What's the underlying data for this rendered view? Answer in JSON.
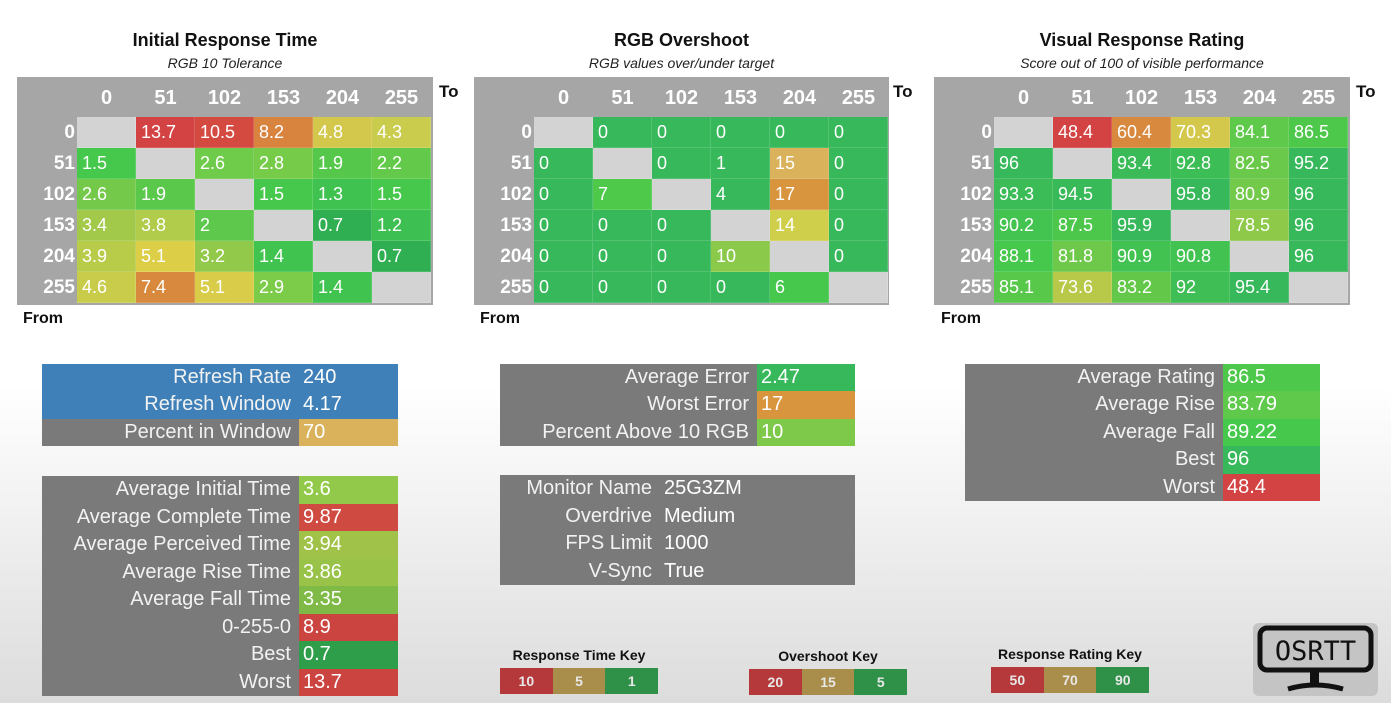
{
  "axis_labels": {
    "to": "To",
    "from": "From"
  },
  "colors": {
    "red": "#d34343",
    "orange": "#d8893e",
    "amber": "#d9b25b",
    "yellow": "#cfcf4c",
    "lime": "#8fc94a",
    "green": "#3cba5a",
    "bright_green": "#46c84c",
    "dark_green": "#2f9e4a",
    "blue": "#3f80b8",
    "gray": "#7a7a7a",
    "diag": "#d3d3d3"
  },
  "heatmaps": [
    {
      "title": "Initial Response Time",
      "subtitle": "RGB 10 Tolerance",
      "columns": [
        "0",
        "51",
        "102",
        "153",
        "204",
        "255"
      ],
      "rows": [
        "0",
        "51",
        "102",
        "153",
        "204",
        "255"
      ],
      "values": [
        [
          null,
          "13.7",
          "10.5",
          "8.2",
          "4.8",
          "4.3"
        ],
        [
          "1.5",
          null,
          "2.6",
          "2.8",
          "1.9",
          "2.2"
        ],
        [
          "2.6",
          "1.9",
          null,
          "1.5",
          "1.3",
          "1.5"
        ],
        [
          "3.4",
          "3.8",
          "2",
          null,
          "0.7",
          "1.2"
        ],
        [
          "3.9",
          "5.1",
          "3.2",
          "1.4",
          null,
          "0.7"
        ],
        [
          "4.6",
          "7.4",
          "5.1",
          "2.9",
          "1.4",
          null
        ]
      ],
      "cell_colors": [
        [
          null,
          "#d34343",
          "#d44a40",
          "#d8833e",
          "#d4c84c",
          "#c9cc4c"
        ],
        [
          "#46c84c",
          null,
          "#6fcb4a",
          "#76cb49",
          "#55c84b",
          "#62c94a"
        ],
        [
          "#74c94a",
          "#5ac84b",
          null,
          "#46c84c",
          "#3fc24f",
          "#46c84c"
        ],
        [
          "#a2c94a",
          "#b0cc4a",
          "#5dc84b",
          null,
          "#2fae52",
          "#3dbf52"
        ],
        [
          "#b8cc4a",
          "#dccf47",
          "#93c94a",
          "#40c44f",
          null,
          "#2fae52"
        ],
        [
          "#c8cc4a",
          "#d8893e",
          "#d9cc48",
          "#7ccb49",
          "#40c44f",
          null
        ]
      ]
    },
    {
      "title": "RGB Overshoot",
      "subtitle": "RGB values over/under target",
      "columns": [
        "0",
        "51",
        "102",
        "153",
        "204",
        "255"
      ],
      "rows": [
        "0",
        "51",
        "102",
        "153",
        "204",
        "255"
      ],
      "values": [
        [
          null,
          "0",
          "0",
          "0",
          "0",
          "0"
        ],
        [
          "0",
          null,
          "0",
          "1",
          "15",
          "0"
        ],
        [
          "0",
          "7",
          null,
          "4",
          "17",
          "0"
        ],
        [
          "0",
          "0",
          "0",
          null,
          "14",
          "0"
        ],
        [
          "0",
          "0",
          "0",
          "10",
          null,
          "0"
        ],
        [
          "0",
          "0",
          "0",
          "0",
          "6",
          null
        ]
      ],
      "cell_colors": [
        [
          null,
          "#37b85a",
          "#37b85a",
          "#37b85a",
          "#37b85a",
          "#37b85a"
        ],
        [
          "#37b85a",
          null,
          "#37b85a",
          "#37b85a",
          "#d9b25b",
          "#37b85a"
        ],
        [
          "#37b85a",
          "#4ec94a",
          null,
          "#37b85a",
          "#d9943e",
          "#37b85a"
        ],
        [
          "#37b85a",
          "#37b85a",
          "#37b85a",
          null,
          "#cfcf4c",
          "#37b85a"
        ],
        [
          "#37b85a",
          "#37b85a",
          "#37b85a",
          "#8ac94a",
          null,
          "#37b85a"
        ],
        [
          "#37b85a",
          "#37b85a",
          "#37b85a",
          "#37b85a",
          "#46c84c",
          null
        ]
      ]
    },
    {
      "title": "Visual Response Rating",
      "subtitle": "Score out of 100 of visible performance",
      "columns": [
        "0",
        "51",
        "102",
        "153",
        "204",
        "255"
      ],
      "rows": [
        "0",
        "51",
        "102",
        "153",
        "204",
        "255"
      ],
      "values": [
        [
          null,
          "48.4",
          "60.4",
          "70.3",
          "84.1",
          "86.5"
        ],
        [
          "96",
          null,
          "93.4",
          "92.8",
          "82.5",
          "95.2"
        ],
        [
          "93.3",
          "94.5",
          null,
          "95.8",
          "80.9",
          "96"
        ],
        [
          "90.2",
          "87.5",
          "95.9",
          null,
          "78.5",
          "96"
        ],
        [
          "88.1",
          "81.8",
          "90.9",
          "90.8",
          null,
          "96"
        ],
        [
          "85.1",
          "73.6",
          "83.2",
          "92",
          "95.4",
          null
        ]
      ],
      "cell_colors": [
        [
          null,
          "#d34343",
          "#d8893e",
          "#d4c84c",
          "#5ec94b",
          "#4ec84b"
        ],
        [
          "#37b85a",
          null,
          "#3bbb58",
          "#3cbd56",
          "#6ac94a",
          "#37b85a"
        ],
        [
          "#3cbc57",
          "#39ba58",
          null,
          "#37b85a",
          "#72c94a",
          "#37b85a"
        ],
        [
          "#43c451",
          "#4cc74c",
          "#37b85a",
          null,
          "#8ec94a",
          "#37b85a"
        ],
        [
          "#46c84c",
          "#6ec94a",
          "#42c351",
          "#42c351",
          null,
          "#37b85a"
        ],
        [
          "#58c84b",
          "#b8c94a",
          "#63c84a",
          "#3ebe55",
          "#37b85a",
          null
        ]
      ]
    }
  ],
  "refresh_box": [
    {
      "label": "Refresh Rate",
      "value": "240",
      "color": "#3f80b8"
    },
    {
      "label": "Refresh Window",
      "value": "4.17",
      "color": "#3f80b8"
    },
    {
      "label": "Percent in Window",
      "value": "70",
      "color": "#d9b25b"
    }
  ],
  "response_stats": [
    {
      "label": "Average Initial Time",
      "value": "3.6",
      "color": "#93c94a"
    },
    {
      "label": "Average Complete Time",
      "value": "9.87",
      "color": "#cf4a40"
    },
    {
      "label": "Average Perceived Time",
      "value": "3.94",
      "color": "#a0c248"
    },
    {
      "label": "Average Rise Time",
      "value": "3.86",
      "color": "#99c248"
    },
    {
      "label": "Average Fall Time",
      "value": "3.35",
      "color": "#7fba46"
    },
    {
      "label": "0-255-0",
      "value": "8.9",
      "color": "#cc4440"
    },
    {
      "label": "Best",
      "value": "0.7",
      "color": "#2f9e4a"
    },
    {
      "label": "Worst",
      "value": "13.7",
      "color": "#cc4440"
    }
  ],
  "overshoot_stats": [
    {
      "label": "Average Error",
      "value": "2.47",
      "color": "#37b85a"
    },
    {
      "label": "Worst Error",
      "value": "17",
      "color": "#d9943e"
    },
    {
      "label": "Percent Above 10 RGB",
      "value": "10",
      "color": "#7ec94a"
    }
  ],
  "monitor_info": [
    {
      "label": "Monitor Name",
      "value": "25G3ZM"
    },
    {
      "label": "Overdrive",
      "value": "Medium"
    },
    {
      "label": "FPS Limit",
      "value": "1000"
    },
    {
      "label": "V-Sync",
      "value": "True"
    }
  ],
  "rating_stats": [
    {
      "label": "Average Rating",
      "value": "86.5",
      "color": "#4ec84b"
    },
    {
      "label": "Average Rise",
      "value": "83.79",
      "color": "#5ec94b"
    },
    {
      "label": "Average Fall",
      "value": "89.22",
      "color": "#46c84c"
    },
    {
      "label": "Best",
      "value": "96",
      "color": "#37b85a"
    },
    {
      "label": "Worst",
      "value": "48.4",
      "color": "#d34343"
    }
  ],
  "keys": [
    {
      "title": "Response Time Key",
      "values": [
        "10",
        "5",
        "1"
      ]
    },
    {
      "title": "Overshoot Key",
      "values": [
        "20",
        "15",
        "5"
      ]
    },
    {
      "title": "Response Rating Key",
      "values": [
        "50",
        "70",
        "90"
      ]
    }
  ],
  "key_colors": [
    "#b5393a",
    "#a98d4a",
    "#2f9147"
  ],
  "logo": {
    "text": "OSRTT"
  }
}
